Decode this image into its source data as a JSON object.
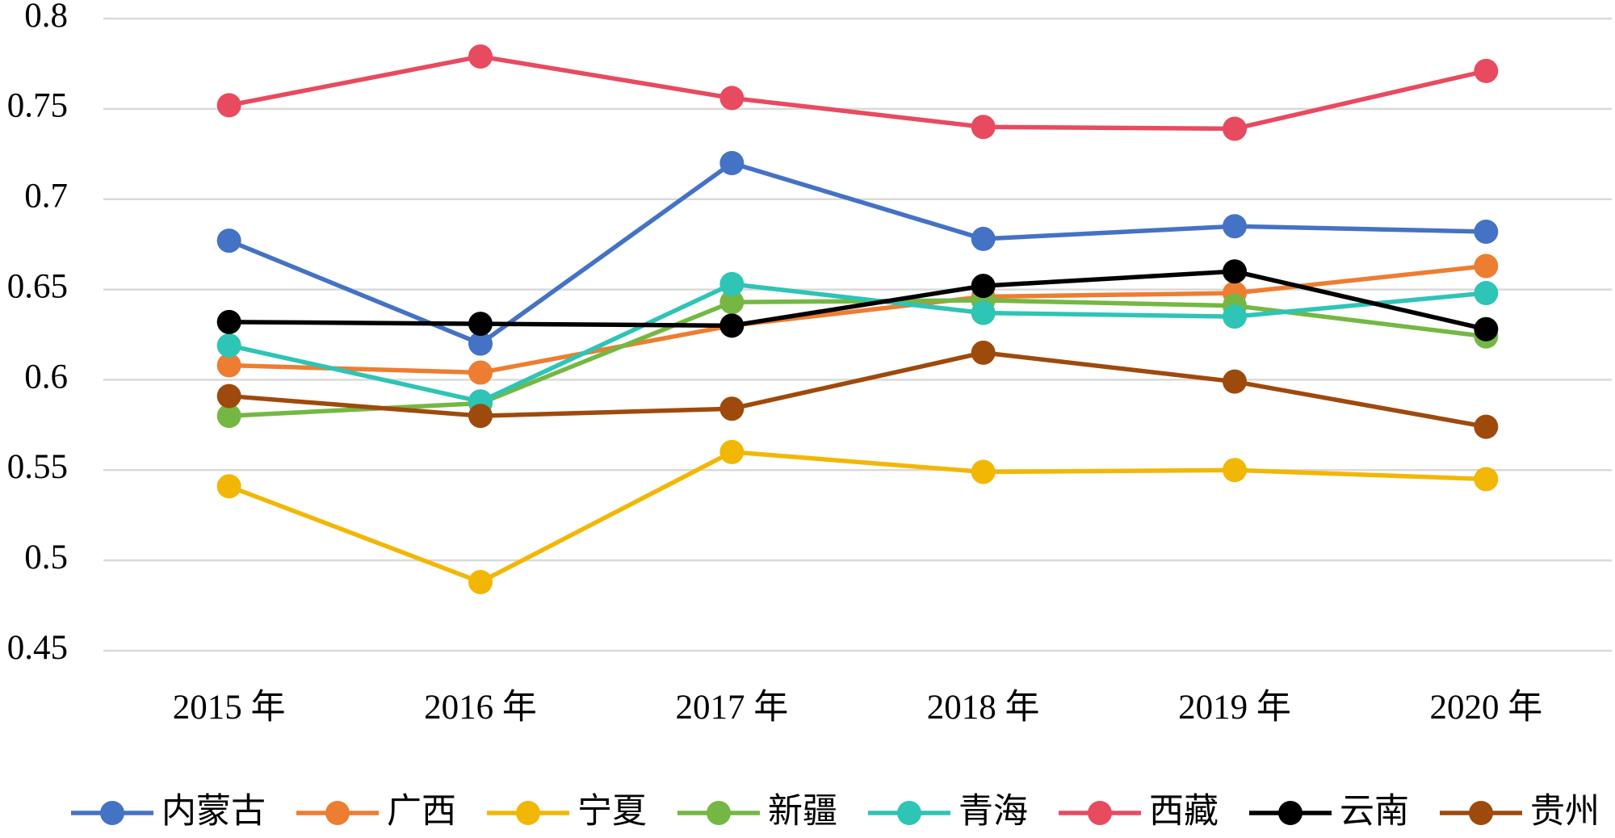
{
  "chart_data": {
    "type": "line",
    "categories": [
      "2015 年",
      "2016 年",
      "2017 年",
      "2018 年",
      "2019 年",
      "2020 年"
    ],
    "series": [
      {
        "name": "内蒙古",
        "color": "#4472c4",
        "values": [
          0.677,
          0.62,
          0.72,
          0.678,
          0.685,
          0.682
        ]
      },
      {
        "name": "广西",
        "color": "#ed7d31",
        "values": [
          0.608,
          0.604,
          0.63,
          0.646,
          0.648,
          0.663
        ]
      },
      {
        "name": "宁夏",
        "color": "#f2b705",
        "values": [
          0.541,
          0.488,
          0.56,
          0.549,
          0.55,
          0.545
        ]
      },
      {
        "name": "新疆",
        "color": "#74b843",
        "values": [
          0.58,
          0.587,
          0.643,
          0.644,
          0.641,
          0.624
        ]
      },
      {
        "name": "青海",
        "color": "#2ec4b6",
        "values": [
          0.619,
          0.588,
          0.653,
          0.637,
          0.635,
          0.648
        ]
      },
      {
        "name": "西藏",
        "color": "#e84a5f",
        "values": [
          0.752,
          0.779,
          0.756,
          0.74,
          0.739,
          0.771
        ]
      },
      {
        "name": "云南",
        "color": "#000000",
        "values": [
          0.632,
          0.631,
          0.63,
          0.652,
          0.66,
          0.628
        ]
      },
      {
        "name": "贵州",
        "color": "#9e4a0c",
        "values": [
          0.591,
          0.58,
          0.584,
          0.615,
          0.599,
          0.574
        ]
      }
    ],
    "ylim": [
      0.45,
      0.8
    ],
    "yticks": [
      0.45,
      0.5,
      0.55,
      0.6,
      0.65,
      0.7,
      0.75,
      0.8
    ],
    "grid": true,
    "legend": "bottom"
  }
}
